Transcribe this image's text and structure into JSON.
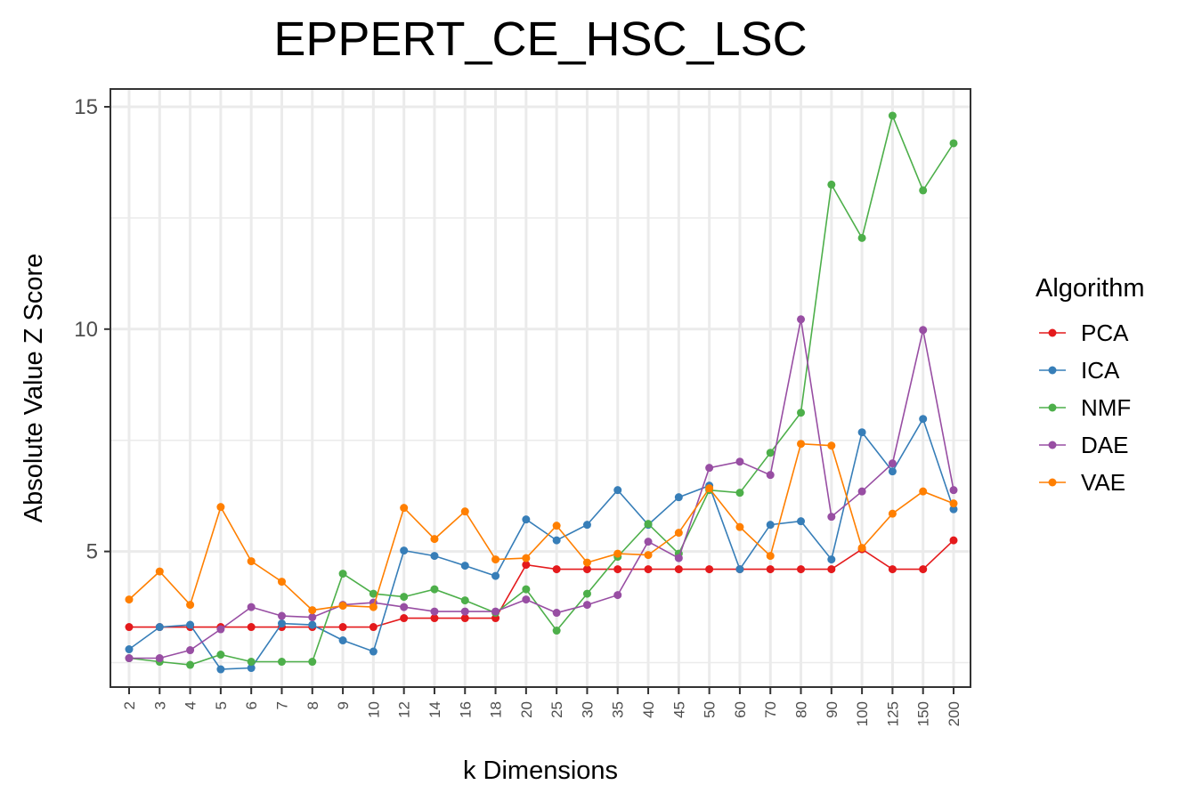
{
  "chart_data": {
    "type": "line",
    "title": "EPPERT_CE_HSC_LSC",
    "xlabel": "k Dimensions",
    "ylabel": "Absolute Value Z Score",
    "categories": [
      "2",
      "3",
      "4",
      "5",
      "6",
      "7",
      "8",
      "9",
      "10",
      "12",
      "14",
      "16",
      "18",
      "20",
      "25",
      "30",
      "35",
      "40",
      "45",
      "50",
      "60",
      "70",
      "80",
      "90",
      "100",
      "125",
      "150",
      "200"
    ],
    "ylim": [
      1.95,
      15.4
    ],
    "yticks": [
      5,
      10,
      15
    ],
    "grid": true,
    "legend": {
      "title": "Algorithm",
      "position": "right"
    },
    "series": [
      {
        "name": "PCA",
        "color": "#e41a1c",
        "values": [
          3.3,
          3.3,
          3.3,
          3.3,
          3.3,
          3.3,
          3.3,
          3.3,
          3.3,
          3.5,
          3.5,
          3.5,
          3.5,
          4.7,
          4.6,
          4.6,
          4.6,
          4.6,
          4.6,
          4.6,
          4.6,
          4.6,
          4.6,
          4.6,
          5.05,
          4.6,
          4.6,
          5.25
        ]
      },
      {
        "name": "ICA",
        "color": "#377eb8",
        "values": [
          2.8,
          3.3,
          3.35,
          2.35,
          2.38,
          3.38,
          3.35,
          3.0,
          2.75,
          5.02,
          4.9,
          4.68,
          4.45,
          5.72,
          5.25,
          5.6,
          6.38,
          5.6,
          6.22,
          6.48,
          4.6,
          5.6,
          5.68,
          4.82,
          7.68,
          6.8,
          7.98,
          5.95
        ]
      },
      {
        "name": "NMF",
        "color": "#4daf4a",
        "values": [
          2.6,
          2.52,
          2.45,
          2.68,
          2.52,
          2.52,
          2.52,
          4.5,
          4.05,
          3.98,
          4.15,
          3.9,
          3.62,
          4.15,
          3.22,
          4.05,
          4.88,
          5.62,
          4.95,
          6.38,
          6.32,
          7.22,
          8.12,
          13.25,
          12.05,
          14.8,
          13.12,
          14.18
        ]
      },
      {
        "name": "DAE",
        "color": "#984ea3",
        "values": [
          2.6,
          2.6,
          2.78,
          3.25,
          3.75,
          3.55,
          3.52,
          3.8,
          3.85,
          3.75,
          3.65,
          3.65,
          3.65,
          3.92,
          3.62,
          3.8,
          4.02,
          5.22,
          4.85,
          6.88,
          7.02,
          6.72,
          10.22,
          5.78,
          6.35,
          6.98,
          9.98,
          6.38
        ]
      },
      {
        "name": "VAE",
        "color": "#ff7f00",
        "values": [
          3.92,
          4.55,
          3.8,
          6.0,
          4.78,
          4.32,
          3.68,
          3.78,
          3.75,
          5.98,
          5.28,
          5.9,
          4.82,
          4.85,
          5.58,
          4.75,
          4.95,
          4.92,
          5.42,
          6.42,
          5.55,
          4.9,
          7.42,
          7.38,
          5.08,
          5.85,
          6.35,
          6.08
        ]
      }
    ]
  }
}
